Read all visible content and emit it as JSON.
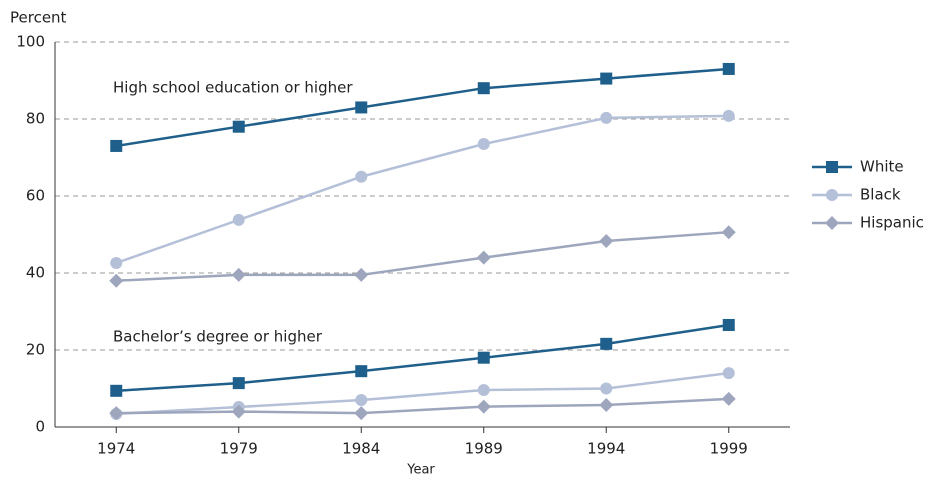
{
  "chart_data": {
    "type": "line",
    "y_label": "Percent",
    "x_label": "Year",
    "categories": [
      "1974",
      "1979",
      "1984",
      "1989",
      "1994",
      "1999"
    ],
    "ylim": [
      0,
      100
    ],
    "yticks": [
      0,
      20,
      40,
      60,
      80,
      100
    ],
    "grid": true,
    "groups": [
      {
        "label": "High school education or higher",
        "series": [
          {
            "name": "White",
            "color": "#1f5f8b",
            "marker": "square",
            "values": [
              73,
              78,
              83,
              88,
              90.5,
              93
            ]
          },
          {
            "name": "Black",
            "color": "#b4bfd8",
            "marker": "circle",
            "values": [
              42.6,
              53.8,
              65,
              73.5,
              80.3,
              80.8
            ]
          },
          {
            "name": "Hispanic",
            "color": "#9ea6bd",
            "marker": "diamond",
            "values": [
              38,
              39.5,
              39.5,
              44,
              48.3,
              50.6
            ]
          }
        ]
      },
      {
        "label": "Bachelor’s degree or higher",
        "series": [
          {
            "name": "White",
            "color": "#1f5f8b",
            "marker": "square",
            "values": [
              9.4,
              11.4,
              14.5,
              18,
              21.6,
              26.5
            ]
          },
          {
            "name": "Black",
            "color": "#b4bfd8",
            "marker": "circle",
            "values": [
              3.4,
              5.2,
              7,
              9.6,
              10,
              14
            ]
          },
          {
            "name": "Hispanic",
            "color": "#9ea6bd",
            "marker": "diamond",
            "values": [
              3.6,
              4,
              3.6,
              5.3,
              5.7,
              7.3
            ]
          }
        ]
      }
    ]
  }
}
